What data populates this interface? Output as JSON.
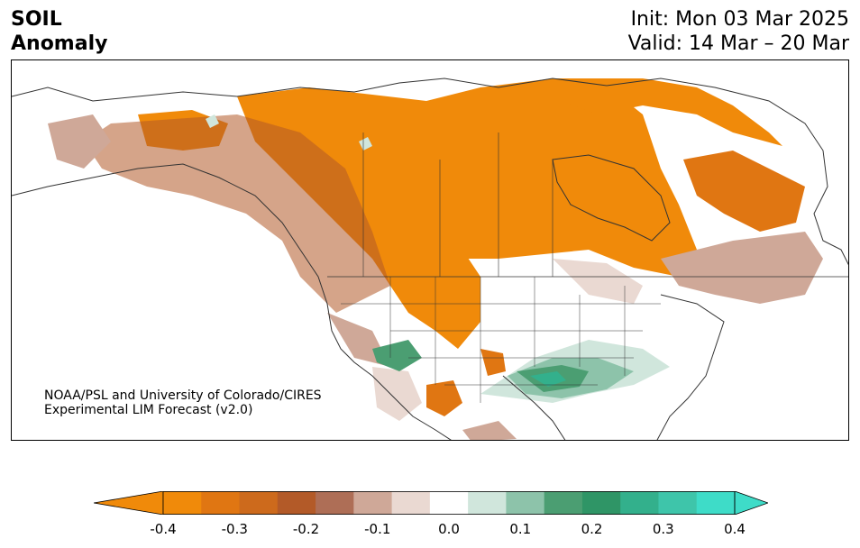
{
  "header": {
    "title_line1": "SOIL",
    "title_line2": "Anomaly",
    "init_label": "Init: Mon 03 Mar 2025",
    "valid_label": "Valid: 14 Mar – 20 Mar"
  },
  "credit": {
    "line1": "NOAA/PSL and University of Colorado/CIRES",
    "line2": "Experimental LIM Forecast (v2.0)"
  },
  "colorbar": {
    "ticks": [
      "-0.4",
      "-0.3",
      "-0.2",
      "-0.1",
      "0.0",
      "0.1",
      "0.2",
      "0.3",
      "0.4"
    ],
    "levels": [
      -0.4,
      -0.35,
      -0.3,
      -0.25,
      -0.2,
      -0.15,
      -0.1,
      -0.05,
      0.05,
      0.1,
      0.15,
      0.2,
      0.25,
      0.3,
      0.35,
      0.4
    ],
    "colors": [
      "#f08a0a",
      "#e07612",
      "#cd6a1c",
      "#b35a28",
      "#ae6e56",
      "#cfa898",
      "#ead9d2",
      "#ffffff",
      "#d0e6dc",
      "#8dc3aa",
      "#4b9e72",
      "#2f9566",
      "#33b08c",
      "#3ec5aa",
      "#3edcc8"
    ],
    "extend_low_color": "#f08a0a",
    "extend_high_color": "#3edcc8"
  },
  "map": {
    "region": "North America",
    "variable": "Soil moisture anomaly"
  }
}
